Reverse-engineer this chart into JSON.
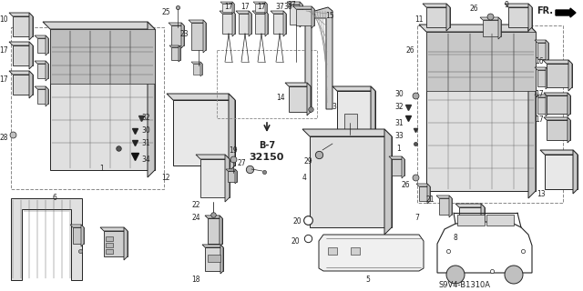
{
  "bg_color": "#f5f5f5",
  "diagram_code": "S9V4-B1310A",
  "b7_label": "B-7",
  "b7_num": "32150",
  "fr_label": "FR.",
  "figsize": [
    6.4,
    3.2
  ],
  "dpi": 100,
  "xlim": [
    0,
    640
  ],
  "ylim": [
    0,
    320
  ]
}
